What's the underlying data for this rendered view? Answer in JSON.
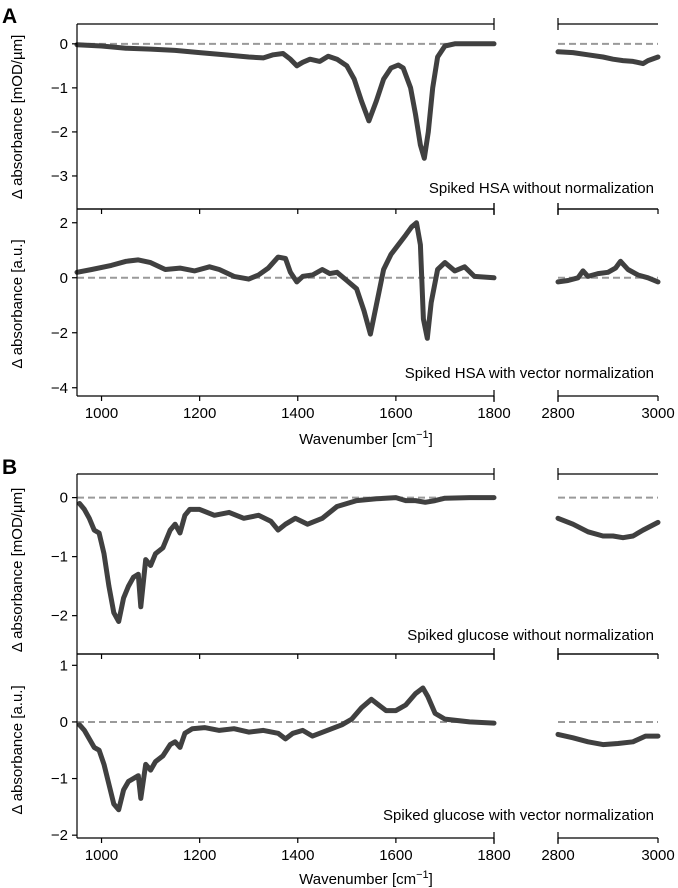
{
  "colors": {
    "trace": "#404040",
    "reference": "#9a9a9a",
    "axis": "#000000"
  },
  "figure_panels": [
    {
      "letter": "A",
      "xlabel_text": "Wavenumber [cm",
      "xlabel_sup": "−1",
      "xlabel_end": "]"
    },
    {
      "letter": "B",
      "xlabel_text": "Wavenumber [cm",
      "xlabel_sup": "−1",
      "xlabel_end": "]"
    }
  ],
  "chart_data": [
    {
      "type": "line",
      "panel": "A",
      "title": "Spiked HSA without normalization",
      "ylabel": "Δ absorbance [mOD/µm]",
      "xlabel": "Wavenumber [cm−1]",
      "xlim_left": [
        950,
        1800
      ],
      "xlim_right": [
        2800,
        3000
      ],
      "ylim": [
        -3.75,
        0.45
      ],
      "yticks": [
        -3,
        -2,
        -1,
        0
      ],
      "ytick_labels": [
        "−3",
        "−2",
        "−1",
        "0"
      ],
      "xticks_left": [
        1000,
        1200,
        1400,
        1600,
        1800
      ],
      "xticks_right": [
        2800,
        3000
      ],
      "xtick_labels_visible": false,
      "reference_line": 0,
      "x_left": [
        950,
        1000,
        1050,
        1100,
        1150,
        1200,
        1250,
        1300,
        1330,
        1350,
        1370,
        1385,
        1398,
        1410,
        1425,
        1445,
        1462,
        1480,
        1500,
        1515,
        1530,
        1545,
        1560,
        1575,
        1590,
        1605,
        1615,
        1630,
        1640,
        1650,
        1658,
        1666,
        1675,
        1685,
        1700,
        1720,
        1750,
        1800
      ],
      "y_left": [
        -0.02,
        -0.05,
        -0.1,
        -0.12,
        -0.15,
        -0.2,
        -0.25,
        -0.3,
        -0.32,
        -0.25,
        -0.22,
        -0.35,
        -0.5,
        -0.42,
        -0.35,
        -0.4,
        -0.28,
        -0.35,
        -0.5,
        -0.8,
        -1.3,
        -1.75,
        -1.3,
        -0.8,
        -0.55,
        -0.48,
        -0.55,
        -1.0,
        -1.6,
        -2.3,
        -2.6,
        -2.0,
        -1.0,
        -0.3,
        -0.05,
        0.0,
        0.0,
        0.0
      ],
      "x_right": [
        2800,
        2830,
        2860,
        2890,
        2910,
        2930,
        2950,
        2970,
        2980,
        3000
      ],
      "y_right": [
        -0.18,
        -0.2,
        -0.25,
        -0.3,
        -0.35,
        -0.38,
        -0.4,
        -0.45,
        -0.38,
        -0.3
      ]
    },
    {
      "type": "line",
      "panel": "A",
      "title": "Spiked HSA with vector normalization",
      "ylabel": "Δ absorbance [a.u.]",
      "xlabel": "Wavenumber [cm−1]",
      "xlim_left": [
        950,
        1800
      ],
      "xlim_right": [
        2800,
        3000
      ],
      "ylim": [
        -4.3,
        2.5
      ],
      "yticks": [
        -4,
        -2,
        0,
        2
      ],
      "ytick_labels": [
        "−4",
        "−2",
        "0",
        "2"
      ],
      "xticks_left": [
        1000,
        1200,
        1400,
        1600,
        1800
      ],
      "xticks_right": [
        2800,
        3000
      ],
      "xtick_labels": [
        "1000",
        "1200",
        "1400",
        "1600",
        "1800",
        "2800",
        "3000"
      ],
      "reference_line": 0,
      "x_left": [
        950,
        980,
        1020,
        1050,
        1075,
        1100,
        1130,
        1160,
        1190,
        1220,
        1240,
        1270,
        1300,
        1320,
        1340,
        1360,
        1375,
        1385,
        1398,
        1410,
        1430,
        1450,
        1465,
        1480,
        1500,
        1520,
        1535,
        1548,
        1560,
        1575,
        1590,
        1605,
        1620,
        1632,
        1642,
        1650,
        1656,
        1664,
        1672,
        1685,
        1700,
        1720,
        1740,
        1760,
        1800
      ],
      "y_left": [
        0.2,
        0.3,
        0.45,
        0.6,
        0.65,
        0.55,
        0.3,
        0.35,
        0.25,
        0.4,
        0.3,
        0.05,
        -0.05,
        0.1,
        0.35,
        0.75,
        0.7,
        0.2,
        -0.15,
        0.05,
        0.1,
        0.3,
        0.15,
        0.2,
        -0.1,
        -0.4,
        -1.2,
        -2.05,
        -1.0,
        0.3,
        0.85,
        1.2,
        1.55,
        1.85,
        2.0,
        1.2,
        -1.5,
        -2.2,
        -0.9,
        0.3,
        0.55,
        0.25,
        0.4,
        0.05,
        0.0
      ],
      "x_right": [
        2800,
        2820,
        2840,
        2850,
        2860,
        2880,
        2900,
        2915,
        2925,
        2940,
        2960,
        2980,
        3000
      ],
      "y_right": [
        -0.15,
        -0.1,
        0.0,
        0.25,
        0.05,
        0.15,
        0.2,
        0.35,
        0.6,
        0.3,
        0.1,
        0.0,
        -0.15
      ]
    },
    {
      "type": "line",
      "panel": "B",
      "title": "Spiked glucose without normalization",
      "ylabel": "Δ absorbance [mOD/µm]",
      "xlabel": "Wavenumber [cm−1]",
      "xlim_left": [
        950,
        1800
      ],
      "xlim_right": [
        2800,
        3000
      ],
      "ylim": [
        -2.65,
        0.4
      ],
      "yticks": [
        -2,
        -1,
        0
      ],
      "ytick_labels": [
        "−2",
        "−1",
        "0"
      ],
      "xticks_left": [
        1000,
        1200,
        1400,
        1600,
        1800
      ],
      "xticks_right": [
        2800,
        3000
      ],
      "xtick_labels_visible": false,
      "reference_line": 0,
      "x_left": [
        955,
        965,
        975,
        985,
        995,
        1005,
        1015,
        1025,
        1035,
        1045,
        1055,
        1065,
        1075,
        1080,
        1090,
        1100,
        1110,
        1125,
        1140,
        1150,
        1160,
        1170,
        1180,
        1200,
        1230,
        1260,
        1290,
        1320,
        1345,
        1360,
        1375,
        1395,
        1420,
        1450,
        1480,
        1520,
        1560,
        1600,
        1620,
        1640,
        1660,
        1680,
        1700,
        1750,
        1800
      ],
      "y_left": [
        -0.1,
        -0.2,
        -0.35,
        -0.55,
        -0.6,
        -0.95,
        -1.5,
        -1.95,
        -2.1,
        -1.7,
        -1.5,
        -1.35,
        -1.3,
        -1.85,
        -1.05,
        -1.15,
        -0.95,
        -0.85,
        -0.55,
        -0.45,
        -0.6,
        -0.3,
        -0.2,
        -0.2,
        -0.3,
        -0.25,
        -0.35,
        -0.3,
        -0.4,
        -0.55,
        -0.45,
        -0.35,
        -0.45,
        -0.35,
        -0.15,
        -0.05,
        -0.02,
        0.0,
        -0.05,
        -0.05,
        -0.08,
        -0.05,
        -0.01,
        0.0,
        0.0
      ],
      "x_right": [
        2800,
        2830,
        2860,
        2890,
        2910,
        2930,
        2950,
        2970,
        3000
      ],
      "y_right": [
        -0.35,
        -0.45,
        -0.58,
        -0.65,
        -0.65,
        -0.68,
        -0.65,
        -0.55,
        -0.42
      ]
    },
    {
      "type": "line",
      "panel": "B",
      "title": "Spiked glucose with vector normalization",
      "ylabel": "Δ absorbance [a.u.]",
      "xlabel": "Wavenumber [cm−1]",
      "xlim_left": [
        950,
        1800
      ],
      "xlim_right": [
        2800,
        3000
      ],
      "ylim": [
        -2.05,
        1.2
      ],
      "yticks": [
        -2,
        -1,
        0,
        1
      ],
      "ytick_labels": [
        "−2",
        "−1",
        "0",
        "1"
      ],
      "xticks_left": [
        1000,
        1200,
        1400,
        1600,
        1800
      ],
      "xticks_right": [
        2800,
        3000
      ],
      "xtick_labels": [
        "1000",
        "1200",
        "1400",
        "1600",
        "1800",
        "2800",
        "3000"
      ],
      "reference_line": 0,
      "x_left": [
        955,
        965,
        975,
        985,
        995,
        1005,
        1015,
        1025,
        1035,
        1045,
        1055,
        1065,
        1075,
        1080,
        1090,
        1100,
        1110,
        1125,
        1140,
        1150,
        1160,
        1170,
        1185,
        1210,
        1240,
        1270,
        1300,
        1330,
        1360,
        1375,
        1390,
        1410,
        1430,
        1460,
        1490,
        1510,
        1530,
        1550,
        1565,
        1580,
        1600,
        1620,
        1640,
        1655,
        1665,
        1680,
        1700,
        1750,
        1800
      ],
      "y_left": [
        -0.05,
        -0.15,
        -0.3,
        -0.45,
        -0.5,
        -0.75,
        -1.1,
        -1.45,
        -1.55,
        -1.2,
        -1.05,
        -1.0,
        -0.95,
        -1.35,
        -0.75,
        -0.85,
        -0.7,
        -0.6,
        -0.4,
        -0.35,
        -0.45,
        -0.2,
        -0.12,
        -0.1,
        -0.15,
        -0.12,
        -0.18,
        -0.15,
        -0.2,
        -0.3,
        -0.2,
        -0.15,
        -0.25,
        -0.15,
        -0.05,
        0.05,
        0.25,
        0.4,
        0.3,
        0.2,
        0.2,
        0.3,
        0.5,
        0.6,
        0.45,
        0.15,
        0.05,
        0.0,
        -0.02
      ],
      "x_right": [
        2800,
        2830,
        2860,
        2890,
        2920,
        2950,
        2975,
        3000
      ],
      "y_right": [
        -0.22,
        -0.28,
        -0.35,
        -0.4,
        -0.38,
        -0.35,
        -0.25,
        -0.25
      ]
    }
  ]
}
